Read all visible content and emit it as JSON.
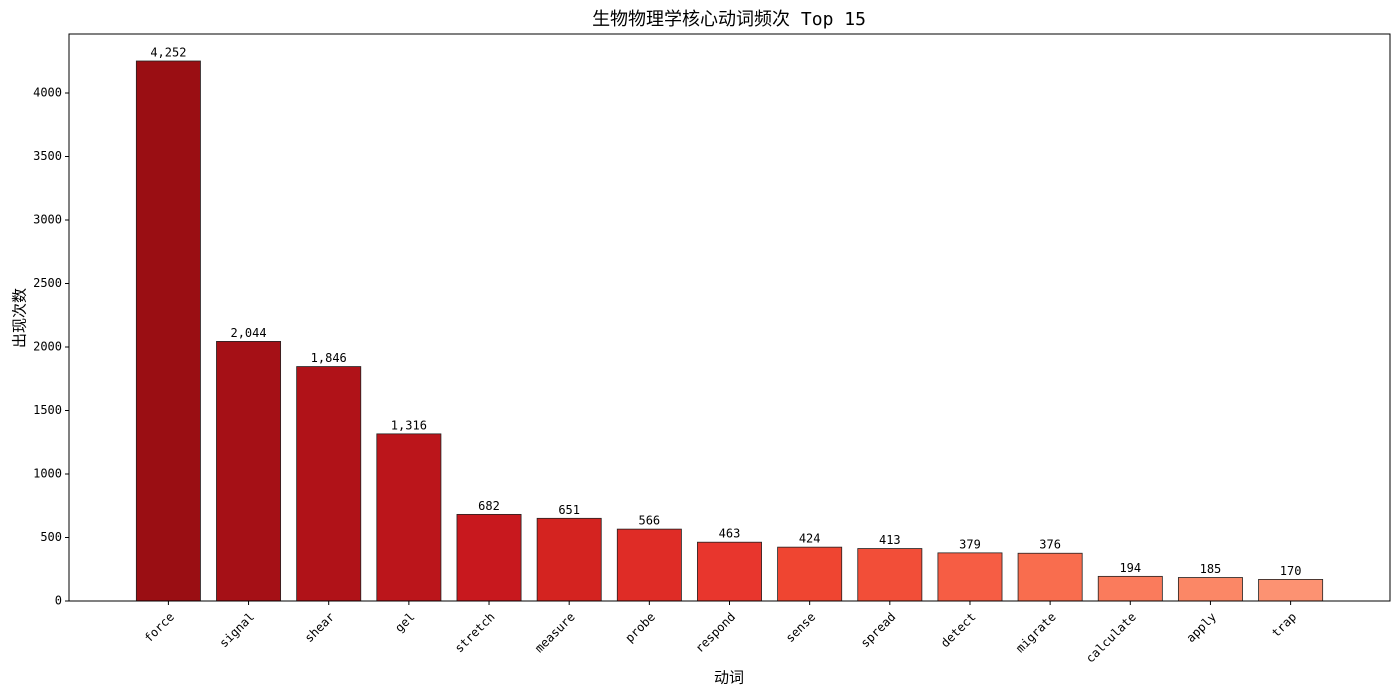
{
  "chart_data": {
    "type": "bar",
    "title": "生物物理学核心动词频次 Top 15",
    "x_label": "动词",
    "y_label": "出现次数",
    "categories": [
      "force",
      "signal",
      "shear",
      "gel",
      "stretch",
      "measure",
      "probe",
      "respond",
      "sense",
      "spread",
      "detect",
      "migrate",
      "calculate",
      "apply",
      "trap"
    ],
    "values": [
      4252,
      2044,
      1846,
      1316,
      682,
      651,
      566,
      463,
      424,
      413,
      379,
      376,
      194,
      185,
      170
    ],
    "value_labels": [
      "4,252",
      "2,044",
      "1,846",
      "1,316",
      "682",
      "651",
      "566",
      "463",
      "424",
      "413",
      "379",
      "376",
      "194",
      "185",
      "170"
    ],
    "colors": [
      "#9a0e13",
      "#a51016",
      "#b01218",
      "#bb151b",
      "#c8181e",
      "#d42320",
      "#df2c26",
      "#e8362d",
      "#ef4531",
      "#f24e38",
      "#f65d44",
      "#f96d4e",
      "#fa7b5c",
      "#fb8766",
      "#fc9272"
    ],
    "ylim": [
      0,
      4464.6
    ],
    "yticks": [
      0,
      500,
      1000,
      1500,
      2000,
      2500,
      3000,
      3500,
      4000
    ],
    "grid": false
  }
}
